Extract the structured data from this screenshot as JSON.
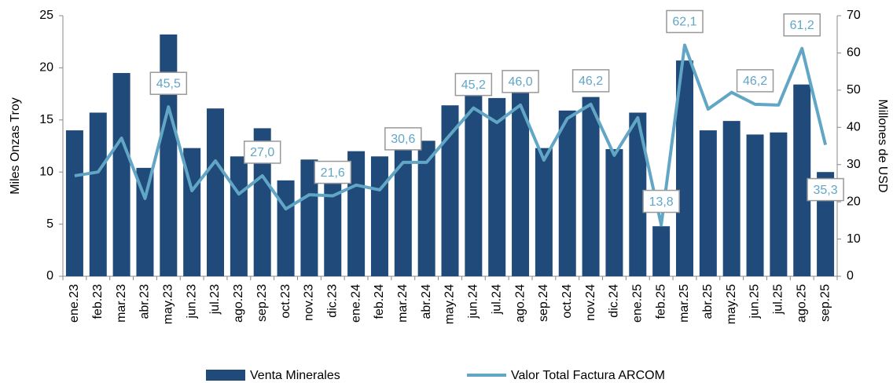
{
  "chart_data": {
    "type": "bar",
    "ylabel": "Miles Onzas Troy",
    "y2label": "Millones de USD",
    "categories": [
      "ene.23",
      "feb.23",
      "mar.23",
      "abr.23",
      "may.23",
      "jun.23",
      "jul.23",
      "ago.23",
      "sep.23",
      "oct.23",
      "nov.23",
      "dic.23",
      "ene.24",
      "feb.24",
      "mar.24",
      "abr.24",
      "may.24",
      "jun.24",
      "jul.24",
      "ago.24",
      "sep.24",
      "oct.24",
      "nov.24",
      "dic.24",
      "ene.25",
      "feb.25",
      "mar.25",
      "abr.25",
      "may.25",
      "jun.25",
      "jul.25",
      "ago.25",
      "sep.25"
    ],
    "series": [
      {
        "name": "Venta Minerales",
        "type": "bar",
        "color": "#1f4a7a",
        "values": [
          14.0,
          15.7,
          19.5,
          10.4,
          23.2,
          12.3,
          16.1,
          11.5,
          14.2,
          9.2,
          11.2,
          10.0,
          12.0,
          11.5,
          12.1,
          13.0,
          16.4,
          19.5,
          17.1,
          17.6,
          12.3,
          15.9,
          17.2,
          12.2,
          15.7,
          4.8,
          20.7,
          14.0,
          14.9,
          13.6,
          13.8,
          18.4,
          10.0
        ]
      },
      {
        "name": "Valor Total Factura ARCOM",
        "type": "line",
        "axis": "y2",
        "color": "#62a6c6",
        "values": [
          27.0,
          28.0,
          37.1,
          20.9,
          45.5,
          23.0,
          31.0,
          22.1,
          27.0,
          18.1,
          21.9,
          21.6,
          24.5,
          23.2,
          30.6,
          30.6,
          38.0,
          45.2,
          41.3,
          46.0,
          31.2,
          42.4,
          46.2,
          32.5,
          42.6,
          13.8,
          62.1,
          44.9,
          49.4,
          46.2,
          46.0,
          61.2,
          35.3
        ],
        "value_labels": [
          null,
          null,
          null,
          null,
          "45,5",
          null,
          null,
          null,
          "27,0",
          null,
          null,
          "21,6",
          null,
          null,
          "30,6",
          null,
          null,
          "45,2",
          null,
          "46,0",
          null,
          null,
          "46,2",
          null,
          null,
          "13,8",
          "62,1",
          null,
          null,
          "46,2",
          null,
          "61,2",
          "35,3"
        ]
      }
    ],
    "ylim": [
      0,
      25
    ],
    "yticks": [
      0,
      5,
      10,
      15,
      20,
      25
    ],
    "y2lim": [
      0,
      70
    ],
    "y2ticks": [
      0,
      10,
      20,
      30,
      40,
      50,
      60,
      70
    ],
    "legend": "bottom"
  }
}
